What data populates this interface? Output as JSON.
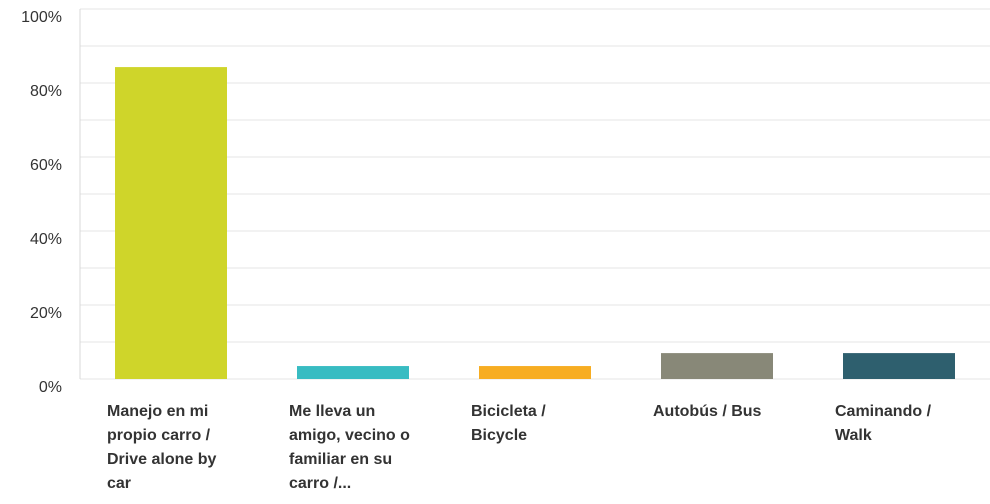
{
  "chart_data": {
    "type": "bar",
    "categories": [
      "Manejo en mi propio carro / Drive alone by car",
      "Me lleva un amigo, vecino o familiar en su carro /...",
      "Bicicleta / Bicycle",
      "Autobús / Bus",
      "Caminando / Walk"
    ],
    "values": [
      84.3,
      3.5,
      3.5,
      7,
      7
    ],
    "colors": [
      "#cfd52a",
      "#38bcc2",
      "#f7ad22",
      "#888878",
      "#2e5f6e"
    ],
    "ylim": [
      0,
      100
    ],
    "yticks": [
      {
        "value": 0,
        "label": "0%"
      },
      {
        "value": 20,
        "label": "20%"
      },
      {
        "value": 40,
        "label": "40%"
      },
      {
        "value": 60,
        "label": "60%"
      },
      {
        "value": 80,
        "label": "80%"
      },
      {
        "value": 100,
        "label": "100%"
      }
    ],
    "minor_gridlines": [
      10,
      30,
      50,
      70,
      90
    ],
    "grid": true
  }
}
